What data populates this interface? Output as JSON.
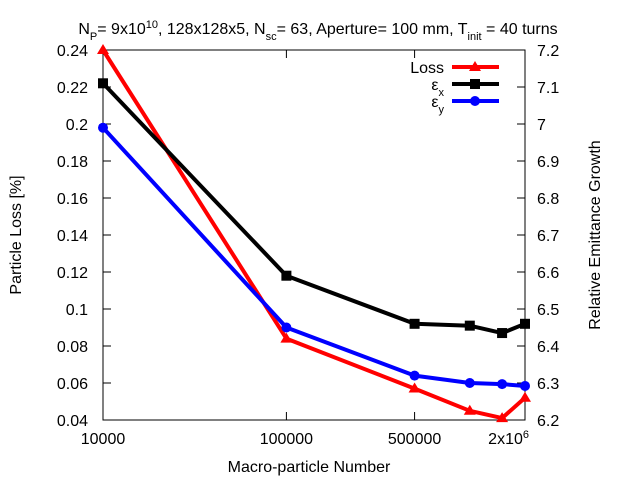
{
  "chart_data": {
    "type": "line",
    "title": {
      "parts": [
        {
          "t": "N"
        },
        {
          "t": "P",
          "sub": true
        },
        {
          "t": "= 9x10"
        },
        {
          "t": "10",
          "sup": true
        },
        {
          "t": ",  128x128x5, N"
        },
        {
          "t": "sc",
          "sub": true
        },
        {
          "t": "= 63, Aperture= 100 mm, T"
        },
        {
          "t": "init",
          "sub": true
        },
        {
          "t": " = 40 turns"
        }
      ]
    },
    "xlabel": "Macro-particle Number",
    "ylabel_left": "Particle Loss [%]",
    "ylabel_right": "Relative Emittance Growth",
    "x_scale": "log",
    "x_range": [
      10000,
      2000000
    ],
    "x_ticks": [
      {
        "value": 10000,
        "label": "10000"
      },
      {
        "value": 100000,
        "label": "100000"
      },
      {
        "value": 500000,
        "label": "500000"
      },
      {
        "value": 2000000,
        "label": "2x10",
        "sup": "6"
      }
    ],
    "ylim_left": [
      0.04,
      0.24
    ],
    "yticks_left": [
      "0.04",
      "0.06",
      "0.08",
      "0.1",
      "0.12",
      "0.14",
      "0.16",
      "0.18",
      "0.2",
      "0.22",
      "0.24"
    ],
    "ylim_right": [
      6.2,
      7.2
    ],
    "yticks_right": [
      "6.2",
      "6.3",
      "6.4",
      "6.5",
      "6.6",
      "6.7",
      "6.8",
      "6.9",
      "7",
      "7.1",
      "7.2"
    ],
    "grid": false,
    "legend_position": "top-right",
    "series": [
      {
        "name": "Loss",
        "axis": "left",
        "color": "#ff0000",
        "marker": "triangle",
        "x": [
          10000,
          100000,
          500000,
          1000000,
          1500000,
          2000000
        ],
        "y": [
          0.24,
          0.084,
          0.057,
          0.045,
          0.041,
          0.052
        ]
      },
      {
        "name": "ε",
        "name_sub": "x",
        "axis": "right",
        "color": "#000000",
        "marker": "square",
        "x": [
          10000,
          100000,
          500000,
          1000000,
          1500000,
          2000000
        ],
        "y": [
          7.11,
          6.59,
          6.46,
          6.455,
          6.435,
          6.46
        ]
      },
      {
        "name": "ε",
        "name_sub": "y",
        "axis": "right",
        "color": "#0000ff",
        "marker": "circle",
        "x": [
          10000,
          100000,
          500000,
          1000000,
          1500000,
          2000000
        ],
        "y": [
          6.99,
          6.45,
          6.32,
          6.3,
          6.297,
          6.292
        ]
      }
    ]
  }
}
